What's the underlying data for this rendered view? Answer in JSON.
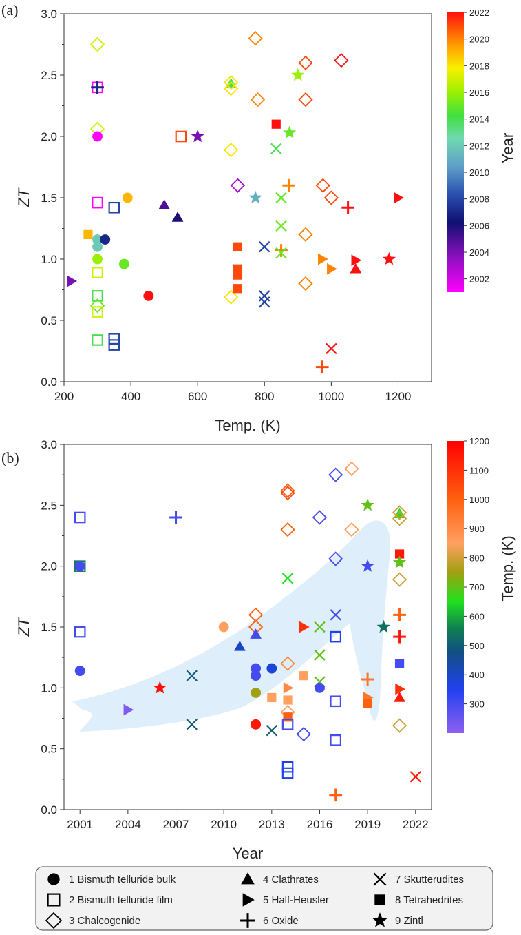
{
  "families": {
    "1": {
      "name": "1 Bismuth telluride  bulk",
      "symbol": "circle"
    },
    "2": {
      "name": "2 Bismuth telluride film",
      "symbol": "square-open"
    },
    "3": {
      "name": "3 Chalcogenide",
      "symbol": "diamond-open"
    },
    "4": {
      "name": "4 Clathrates",
      "symbol": "triangle"
    },
    "5": {
      "name": "5 Half-Heusler",
      "symbol": "triangle-right"
    },
    "6": {
      "name": "6 Oxide",
      "symbol": "plus"
    },
    "7": {
      "name": "7 Skutterudites",
      "symbol": "x"
    },
    "8": {
      "name": "8 Tetrahedrites",
      "symbol": "square"
    },
    "9": {
      "name": "9 Zintl",
      "symbol": "star"
    }
  },
  "legend_order": [
    "1",
    "4",
    "7",
    "2",
    "5",
    "8",
    "3",
    "6",
    "9"
  ],
  "chart_data": [
    {
      "panel_label": "(a)",
      "type": "scatter",
      "xlabel": "Temp. (K)",
      "ylabel": "ZT",
      "xlim": [
        200,
        1300
      ],
      "ylim": [
        0,
        3.0
      ],
      "xticks": [
        "200",
        "400",
        "600",
        "800",
        "1000",
        "1200"
      ],
      "yticks": [
        "0.0",
        "0.5",
        "1.0",
        "1.5",
        "2.0",
        "2.5",
        "3.0"
      ],
      "colorbar": {
        "title": "Year",
        "range": [
          2001,
          2022
        ],
        "ticks": [
          "2002",
          "2004",
          "2006",
          "2008",
          "2010",
          "2012",
          "2014",
          "2016",
          "2018",
          "2020",
          "2022"
        ]
      },
      "points": [
        {
          "f": 5,
          "x": 222,
          "y": 0.82,
          "c": 2004
        },
        {
          "f": 8,
          "x": 272,
          "y": 1.2,
          "c": 2019
        },
        {
          "f": 2,
          "x": 300,
          "y": 2.4,
          "c": 2001
        },
        {
          "f": 6,
          "x": 300,
          "y": 2.4,
          "c": 2007
        },
        {
          "f": 3,
          "x": 300,
          "y": 2.75,
          "c": 2017
        },
        {
          "f": 3,
          "x": 300,
          "y": 2.06,
          "c": 2017
        },
        {
          "f": 1,
          "x": 300,
          "y": 2.0,
          "c": 2001
        },
        {
          "f": 2,
          "x": 300,
          "y": 1.46,
          "c": 2001
        },
        {
          "f": 1,
          "x": 300,
          "y": 1.16,
          "c": 2012
        },
        {
          "f": 1,
          "x": 300,
          "y": 1.1,
          "c": 2012
        },
        {
          "f": 1,
          "x": 300,
          "y": 1.0,
          "c": 2016
        },
        {
          "f": 2,
          "x": 300,
          "y": 0.89,
          "c": 2017
        },
        {
          "f": 2,
          "x": 300,
          "y": 0.7,
          "c": 2014
        },
        {
          "f": 3,
          "x": 300,
          "y": 0.62,
          "c": 2015
        },
        {
          "f": 2,
          "x": 300,
          "y": 0.57,
          "c": 2017
        },
        {
          "f": 2,
          "x": 300,
          "y": 0.34,
          "c": 2014
        },
        {
          "f": 1,
          "x": 323,
          "y": 1.16,
          "c": 2007
        },
        {
          "f": 2,
          "x": 350,
          "y": 1.42,
          "c": 2008
        },
        {
          "f": 2,
          "x": 350,
          "y": 0.35,
          "c": 2008
        },
        {
          "f": 2,
          "x": 350,
          "y": 0.3,
          "c": 2008
        },
        {
          "f": 1,
          "x": 380,
          "y": 0.96,
          "c": 2015
        },
        {
          "f": 1,
          "x": 390,
          "y": 1.5,
          "c": 2019
        },
        {
          "f": 1,
          "x": 453,
          "y": 0.7,
          "c": 2022
        },
        {
          "f": 4,
          "x": 500,
          "y": 1.44,
          "c": 2005
        },
        {
          "f": 4,
          "x": 540,
          "y": 1.34,
          "c": 2006
        },
        {
          "f": 2,
          "x": 550,
          "y": 2.0,
          "c": 2021
        },
        {
          "f": 9,
          "x": 600,
          "y": 2.0,
          "c": 2004
        },
        {
          "f": 4,
          "x": 700,
          "y": 2.43,
          "c": 2014
        },
        {
          "f": 3,
          "x": 700,
          "y": 2.44,
          "c": 2018
        },
        {
          "f": 3,
          "x": 700,
          "y": 2.39,
          "c": 2018
        },
        {
          "f": 3,
          "x": 700,
          "y": 1.89,
          "c": 2018
        },
        {
          "f": 3,
          "x": 700,
          "y": 0.69,
          "c": 2018
        },
        {
          "f": 3,
          "x": 720,
          "y": 1.6,
          "c": 2003
        },
        {
          "f": 8,
          "x": 720,
          "y": 1.1,
          "c": 2021
        },
        {
          "f": 8,
          "x": 720,
          "y": 0.92,
          "c": 2021
        },
        {
          "f": 8,
          "x": 720,
          "y": 0.87,
          "c": 2021
        },
        {
          "f": 8,
          "x": 720,
          "y": 0.76,
          "c": 2021
        },
        {
          "f": 3,
          "x": 773,
          "y": 2.8,
          "c": 2020
        },
        {
          "f": 9,
          "x": 773,
          "y": 1.5,
          "c": 2011
        },
        {
          "f": 3,
          "x": 780,
          "y": 2.3,
          "c": 2020
        },
        {
          "f": 7,
          "x": 800,
          "y": 1.1,
          "c": 2008
        },
        {
          "f": 7,
          "x": 800,
          "y": 0.7,
          "c": 2008
        },
        {
          "f": 7,
          "x": 800,
          "y": 0.65,
          "c": 2008
        },
        {
          "f": 8,
          "x": 835,
          "y": 2.1,
          "c": 2022
        },
        {
          "f": 7,
          "x": 835,
          "y": 1.9,
          "c": 2014
        },
        {
          "f": 7,
          "x": 850,
          "y": 1.5,
          "c": 2015
        },
        {
          "f": 7,
          "x": 850,
          "y": 1.27,
          "c": 2015
        },
        {
          "f": 6,
          "x": 850,
          "y": 1.07,
          "c": 2020
        },
        {
          "f": 7,
          "x": 850,
          "y": 1.05,
          "c": 2015
        },
        {
          "f": 6,
          "x": 873,
          "y": 1.6,
          "c": 2020
        },
        {
          "f": 9,
          "x": 875,
          "y": 2.03,
          "c": 2015
        },
        {
          "f": 9,
          "x": 900,
          "y": 2.5,
          "c": 2016
        },
        {
          "f": 3,
          "x": 923,
          "y": 2.6,
          "c": 2021
        },
        {
          "f": 3,
          "x": 923,
          "y": 2.3,
          "c": 2021
        },
        {
          "f": 3,
          "x": 923,
          "y": 1.2,
          "c": 2020
        },
        {
          "f": 3,
          "x": 923,
          "y": 0.8,
          "c": 2020
        },
        {
          "f": 5,
          "x": 973,
          "y": 1.0,
          "c": 2020
        },
        {
          "f": 6,
          "x": 973,
          "y": 0.12,
          "c": 2021
        },
        {
          "f": 3,
          "x": 975,
          "y": 1.6,
          "c": 2021
        },
        {
          "f": 3,
          "x": 1000,
          "y": 1.5,
          "c": 2021
        },
        {
          "f": 5,
          "x": 1000,
          "y": 0.92,
          "c": 2020
        },
        {
          "f": 7,
          "x": 1000,
          "y": 0.27,
          "c": 2022
        },
        {
          "f": 3,
          "x": 1030,
          "y": 2.62,
          "c": 2022
        },
        {
          "f": 6,
          "x": 1050,
          "y": 1.42,
          "c": 2022
        },
        {
          "f": 5,
          "x": 1073,
          "y": 0.99,
          "c": 2022
        },
        {
          "f": 4,
          "x": 1073,
          "y": 0.92,
          "c": 2022
        },
        {
          "f": 9,
          "x": 1173,
          "y": 1.0,
          "c": 2022
        },
        {
          "f": 5,
          "x": 1200,
          "y": 1.5,
          "c": 2022
        }
      ]
    },
    {
      "panel_label": "(b)",
      "type": "scatter",
      "xlabel": "Year",
      "ylabel": "ZT",
      "xlim": [
        2000,
        2023
      ],
      "ylim": [
        0,
        3.0
      ],
      "xticks": [
        "2001",
        "2004",
        "2007",
        "2010",
        "2013",
        "2016",
        "2019",
        "2022"
      ],
      "yticks": [
        "0.0",
        "0.5",
        "1.0",
        "1.5",
        "2.0",
        "2.5",
        "3.0"
      ],
      "colorbar": {
        "title": "Temp. (K)",
        "range": [
          200,
          1200
        ],
        "ticks": [
          "300",
          "400",
          "500",
          "600",
          "700",
          "800",
          "900",
          "1000",
          "1100",
          "1200"
        ]
      },
      "points": [
        {
          "f": 2,
          "x": 2001,
          "y": 2.4,
          "c": 300
        },
        {
          "f": 2,
          "x": 2001,
          "y": 2.0,
          "c": 550
        },
        {
          "f": 1,
          "x": 2001,
          "y": 2.0,
          "c": 300
        },
        {
          "f": 2,
          "x": 2001,
          "y": 1.46,
          "c": 300
        },
        {
          "f": 1,
          "x": 2001,
          "y": 1.14,
          "c": 300
        },
        {
          "f": 5,
          "x": 2004,
          "y": 0.82,
          "c": 222
        },
        {
          "f": 9,
          "x": 2006,
          "y": 1.0,
          "c": 1173
        },
        {
          "f": 6,
          "x": 2007,
          "y": 2.4,
          "c": 300
        },
        {
          "f": 7,
          "x": 2008,
          "y": 1.1,
          "c": 500
        },
        {
          "f": 7,
          "x": 2008,
          "y": 0.7,
          "c": 500
        },
        {
          "f": 1,
          "x": 2010,
          "y": 1.5,
          "c": 850
        },
        {
          "f": 4,
          "x": 2011,
          "y": 1.34,
          "c": 400
        },
        {
          "f": 3,
          "x": 2012,
          "y": 1.6,
          "c": 1000
        },
        {
          "f": 3,
          "x": 2012,
          "y": 1.5,
          "c": 1000
        },
        {
          "f": 4,
          "x": 2012,
          "y": 1.44,
          "c": 300
        },
        {
          "f": 1,
          "x": 2012,
          "y": 1.16,
          "c": 300
        },
        {
          "f": 1,
          "x": 2012,
          "y": 1.1,
          "c": 300
        },
        {
          "f": 1,
          "x": 2012,
          "y": 0.96,
          "c": 750
        },
        {
          "f": 1,
          "x": 2012,
          "y": 0.7,
          "c": 1150
        },
        {
          "f": 1,
          "x": 2013,
          "y": 1.16,
          "c": 380
        },
        {
          "f": 8,
          "x": 2013,
          "y": 0.92,
          "c": 850
        },
        {
          "f": 7,
          "x": 2013,
          "y": 0.65,
          "c": 500
        },
        {
          "f": 3,
          "x": 2014,
          "y": 2.62,
          "c": 1000
        },
        {
          "f": 3,
          "x": 2014,
          "y": 2.6,
          "c": 1050
        },
        {
          "f": 3,
          "x": 2014,
          "y": 2.3,
          "c": 1000
        },
        {
          "f": 7,
          "x": 2014,
          "y": 1.9,
          "c": 650
        },
        {
          "f": 3,
          "x": 2014,
          "y": 1.2,
          "c": 900
        },
        {
          "f": 5,
          "x": 2014,
          "y": 1.0,
          "c": 900
        },
        {
          "f": 8,
          "x": 2014,
          "y": 0.9,
          "c": 850
        },
        {
          "f": 3,
          "x": 2014,
          "y": 0.8,
          "c": 850
        },
        {
          "f": 8,
          "x": 2014,
          "y": 0.76,
          "c": 1000
        },
        {
          "f": 2,
          "x": 2014,
          "y": 0.7,
          "c": 300
        },
        {
          "f": 2,
          "x": 2014,
          "y": 0.35,
          "c": 350
        },
        {
          "f": 2,
          "x": 2014,
          "y": 0.3,
          "c": 350
        },
        {
          "f": 5,
          "x": 2015,
          "y": 1.5,
          "c": 1100
        },
        {
          "f": 8,
          "x": 2015,
          "y": 1.1,
          "c": 850
        },
        {
          "f": 3,
          "x": 2015,
          "y": 0.62,
          "c": 300
        },
        {
          "f": 3,
          "x": 2016,
          "y": 2.4,
          "c": 300
        },
        {
          "f": 7,
          "x": 2016,
          "y": 1.5,
          "c": 700
        },
        {
          "f": 7,
          "x": 2016,
          "y": 1.27,
          "c": 700
        },
        {
          "f": 7,
          "x": 2016,
          "y": 1.05,
          "c": 700
        },
        {
          "f": 1,
          "x": 2016,
          "y": 1.0,
          "c": 300
        },
        {
          "f": 3,
          "x": 2017,
          "y": 2.75,
          "c": 300
        },
        {
          "f": 3,
          "x": 2017,
          "y": 2.06,
          "c": 300
        },
        {
          "f": 7,
          "x": 2017,
          "y": 1.6,
          "c": 300
        },
        {
          "f": 2,
          "x": 2017,
          "y": 1.42,
          "c": 350
        },
        {
          "f": 2,
          "x": 2017,
          "y": 0.89,
          "c": 300
        },
        {
          "f": 2,
          "x": 2017,
          "y": 0.57,
          "c": 300
        },
        {
          "f": 6,
          "x": 2017,
          "y": 0.12,
          "c": 1000
        },
        {
          "f": 3,
          "x": 2018,
          "y": 2.8,
          "c": 850
        },
        {
          "f": 3,
          "x": 2018,
          "y": 2.3,
          "c": 850
        },
        {
          "f": 9,
          "x": 2019,
          "y": 2.5,
          "c": 700
        },
        {
          "f": 9,
          "x": 2019,
          "y": 2.0,
          "c": 300
        },
        {
          "f": 6,
          "x": 2019,
          "y": 1.07,
          "c": 950
        },
        {
          "f": 5,
          "x": 2019,
          "y": 0.92,
          "c": 950
        },
        {
          "f": 8,
          "x": 2019,
          "y": 0.87,
          "c": 1000
        },
        {
          "f": 9,
          "x": 2020,
          "y": 1.5,
          "c": 530
        },
        {
          "f": 4,
          "x": 2021,
          "y": 2.43,
          "c": 650
        },
        {
          "f": 3,
          "x": 2021,
          "y": 2.44,
          "c": 800
        },
        {
          "f": 3,
          "x": 2021,
          "y": 2.39,
          "c": 800
        },
        {
          "f": 8,
          "x": 2021,
          "y": 2.1,
          "c": 1150
        },
        {
          "f": 9,
          "x": 2021,
          "y": 2.03,
          "c": 700
        },
        {
          "f": 3,
          "x": 2021,
          "y": 1.89,
          "c": 800
        },
        {
          "f": 6,
          "x": 2021,
          "y": 1.6,
          "c": 1000
        },
        {
          "f": 6,
          "x": 2021,
          "y": 1.42,
          "c": 1150
        },
        {
          "f": 8,
          "x": 2021,
          "y": 1.2,
          "c": 300
        },
        {
          "f": 5,
          "x": 2021,
          "y": 0.99,
          "c": 1100
        },
        {
          "f": 4,
          "x": 2021,
          "y": 0.92,
          "c": 1150
        },
        {
          "f": 3,
          "x": 2021,
          "y": 0.69,
          "c": 800
        },
        {
          "f": 7,
          "x": 2022,
          "y": 0.27,
          "c": 1150
        }
      ]
    }
  ]
}
